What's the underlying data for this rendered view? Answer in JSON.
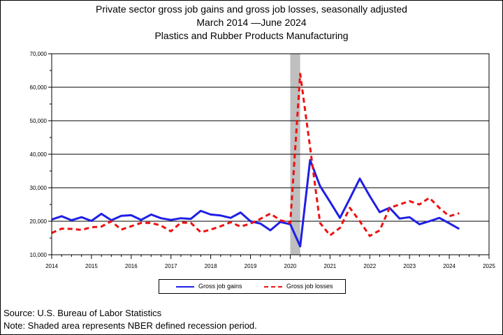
{
  "title_lines": [
    "Private sector gross job gains and gross job losses, seasonally adjusted",
    "March 2014 —June 2024",
    "Plastics and Rubber Products Manufacturing"
  ],
  "footnotes": {
    "source": "Source: U.S. Bureau of Labor Statistics",
    "note": "Note: Shaded area represents NBER defined recession period."
  },
  "colors": {
    "gains": "#1f1fe6",
    "losses": "#ee1111",
    "recession": "#bfbfbf"
  },
  "chart_data": {
    "type": "line",
    "title": "Private sector gross job gains and gross job losses, seasonally adjusted",
    "xlim": [
      2014,
      2025
    ],
    "ylim": [
      10000,
      70000
    ],
    "x_ticks": [
      "2014",
      "2015",
      "2016",
      "2017",
      "2018",
      "2019",
      "2020",
      "2021",
      "2022",
      "2023",
      "2024",
      "2025"
    ],
    "y_ticks": [
      "10,000",
      "20,000",
      "30,000",
      "40,000",
      "50,000",
      "60,000",
      "70,000"
    ],
    "grid": "horizontal",
    "legend_position": "bottom",
    "recession": {
      "start": 2020.0,
      "end": 2020.25
    },
    "x": [
      2014.0,
      2014.25,
      2014.5,
      2014.75,
      2015.0,
      2015.25,
      2015.5,
      2015.75,
      2016.0,
      2016.25,
      2016.5,
      2016.75,
      2017.0,
      2017.25,
      2017.5,
      2017.75,
      2018.0,
      2018.25,
      2018.5,
      2018.75,
      2019.0,
      2019.25,
      2019.5,
      2019.75,
      2020.0,
      2020.25,
      2020.5,
      2020.75,
      2021.0,
      2021.25,
      2021.5,
      2021.75,
      2022.0,
      2022.25,
      2022.5,
      2022.75,
      2023.0,
      2023.25,
      2023.5,
      2023.75,
      2024.0,
      2024.25
    ],
    "series": [
      {
        "name": "Gross job gains",
        "style": "solid",
        "values": [
          20500,
          21500,
          20300,
          21200,
          20100,
          22200,
          20300,
          21600,
          21800,
          20400,
          22000,
          20900,
          20400,
          20900,
          20700,
          23100,
          22000,
          21700,
          21000,
          22600,
          20000,
          19300,
          17300,
          19800,
          19100,
          12500,
          38300,
          30500,
          25800,
          21000,
          26800,
          32700,
          27500,
          22700,
          24000,
          20800,
          21200,
          19100,
          20000,
          21000,
          19400,
          17700
        ]
      },
      {
        "name": "Gross job losses",
        "style": "dashed",
        "values": [
          16500,
          17800,
          17700,
          17400,
          18200,
          18400,
          20000,
          17500,
          18500,
          19500,
          19500,
          18700,
          17000,
          19600,
          19500,
          16700,
          17500,
          18500,
          19700,
          18400,
          19300,
          20700,
          22300,
          20300,
          19500,
          64000,
          42000,
          19500,
          15800,
          18000,
          24000,
          20000,
          15600,
          17300,
          24000,
          25000,
          26000,
          25000,
          27000,
          24000,
          21500,
          22400
        ]
      }
    ]
  }
}
